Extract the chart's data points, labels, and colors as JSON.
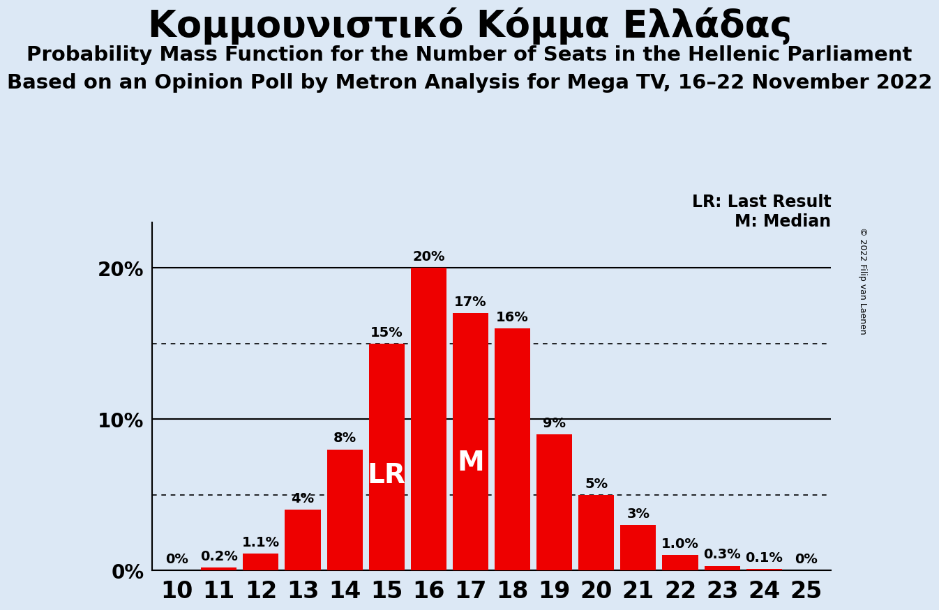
{
  "title": "Κομμουνιστικό Κόμμα Ελλάδας",
  "subtitle1": "Probability Mass Function for the Number of Seats in the Hellenic Parliament",
  "subtitle2": "Based on an Opinion Poll by Metron Analysis for Mega TV, 16–22 November 2022",
  "copyright": "© 2022 Filip van Laenen",
  "seats": [
    10,
    11,
    12,
    13,
    14,
    15,
    16,
    17,
    18,
    19,
    20,
    21,
    22,
    23,
    24,
    25
  ],
  "probabilities": [
    0.0,
    0.2,
    1.1,
    4.0,
    8.0,
    15.0,
    20.0,
    17.0,
    16.0,
    9.0,
    5.0,
    3.0,
    1.0,
    0.3,
    0.1,
    0.0
  ],
  "labels": [
    "0%",
    "0.2%",
    "1.1%",
    "4%",
    "8%",
    "15%",
    "20%",
    "17%",
    "16%",
    "9%",
    "5%",
    "3%",
    "1.0%",
    "0.3%",
    "0.1%",
    "0%"
  ],
  "bar_color": "#ee0000",
  "background_color": "#dce8f5",
  "lr_seat": 15,
  "median_seat": 17,
  "lr_label": "LR",
  "median_label": "M",
  "legend_lr": "LR: Last Result",
  "legend_m": "M: Median",
  "yticks": [
    0,
    10,
    20
  ],
  "dotted_lines": [
    5,
    15
  ],
  "ylim": [
    0,
    23
  ],
  "ylabel_fontsize": 20,
  "xlabel_fontsize": 24,
  "title_fontsize": 38,
  "subtitle_fontsize": 21,
  "label_fontsize": 14
}
